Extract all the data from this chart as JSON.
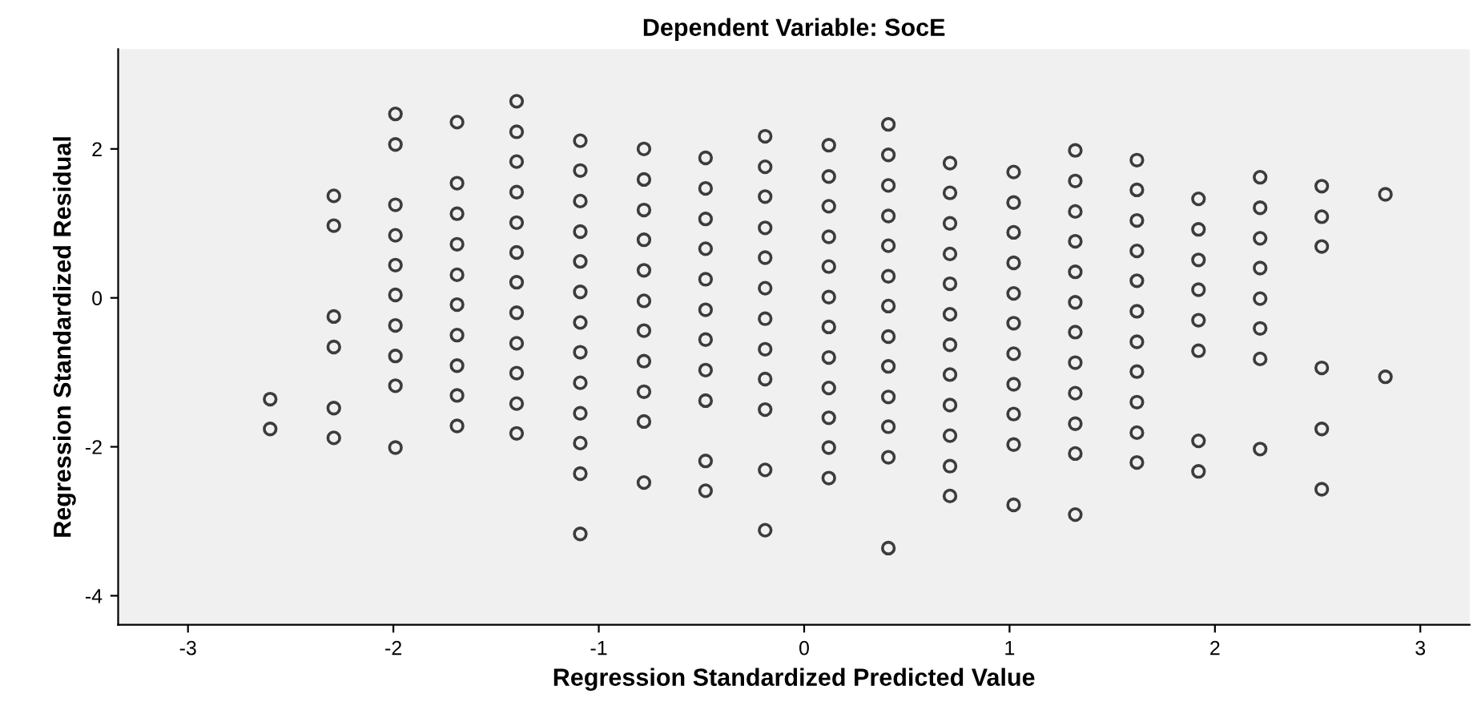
{
  "chart_data": {
    "type": "scatter",
    "title": "Dependent Variable: SocE",
    "xlabel": "Regression Standardized Predicted Value",
    "ylabel": "Regression Standardized Residual",
    "xlim": [
      -3.34,
      3.24
    ],
    "ylim": [
      -4.39,
      3.34
    ],
    "xticks": [
      -3,
      -2,
      -1,
      0,
      1,
      2,
      3
    ],
    "yticks": [
      -4,
      -2,
      0,
      2
    ],
    "grid": false,
    "marker": "circle",
    "series": [
      {
        "color": "#3c3c3c",
        "x": [
          -2.6,
          -2.6,
          -2.29,
          -2.29,
          -2.29,
          -2.29,
          -2.29,
          -2.29,
          -1.99,
          -1.99,
          -1.99,
          -1.99,
          -1.99,
          -1.99,
          -1.99,
          -1.99,
          -1.99,
          -1.99,
          -1.69,
          -1.69,
          -1.69,
          -1.69,
          -1.69,
          -1.69,
          -1.69,
          -1.69,
          -1.69,
          -1.69,
          -1.4,
          -1.4,
          -1.4,
          -1.4,
          -1.4,
          -1.4,
          -1.4,
          -1.4,
          -1.4,
          -1.4,
          -1.4,
          -1.4,
          -1.09,
          -1.09,
          -1.09,
          -1.09,
          -1.09,
          -1.09,
          -1.09,
          -1.09,
          -1.09,
          -1.09,
          -1.09,
          -1.09,
          -1.09,
          -0.78,
          -0.78,
          -0.78,
          -0.78,
          -0.78,
          -0.78,
          -0.78,
          -0.78,
          -0.78,
          -0.78,
          -0.78,
          -0.48,
          -0.48,
          -0.48,
          -0.48,
          -0.48,
          -0.48,
          -0.48,
          -0.48,
          -0.48,
          -0.48,
          -0.48,
          -0.19,
          -0.19,
          -0.19,
          -0.19,
          -0.19,
          -0.19,
          -0.19,
          -0.19,
          -0.19,
          -0.19,
          -0.19,
          -0.19,
          0.12,
          0.12,
          0.12,
          0.12,
          0.12,
          0.12,
          0.12,
          0.12,
          0.12,
          0.12,
          0.12,
          0.12,
          0.41,
          0.41,
          0.41,
          0.41,
          0.41,
          0.41,
          0.41,
          0.41,
          0.41,
          0.41,
          0.41,
          0.41,
          0.41,
          0.71,
          0.71,
          0.71,
          0.71,
          0.71,
          0.71,
          0.71,
          0.71,
          0.71,
          0.71,
          0.71,
          0.71,
          1.02,
          1.02,
          1.02,
          1.02,
          1.02,
          1.02,
          1.02,
          1.02,
          1.02,
          1.02,
          1.02,
          1.32,
          1.32,
          1.32,
          1.32,
          1.32,
          1.32,
          1.32,
          1.32,
          1.32,
          1.32,
          1.32,
          1.32,
          1.62,
          1.62,
          1.62,
          1.62,
          1.62,
          1.62,
          1.62,
          1.62,
          1.62,
          1.62,
          1.62,
          1.92,
          1.92,
          1.92,
          1.92,
          1.92,
          1.92,
          1.92,
          1.92,
          2.22,
          2.22,
          2.22,
          2.22,
          2.22,
          2.22,
          2.22,
          2.22,
          2.52,
          2.52,
          2.52,
          2.52,
          2.52,
          2.52,
          2.83,
          2.83
        ],
        "values": [
          -1.36,
          -1.76,
          1.37,
          0.97,
          -0.25,
          -0.66,
          -1.48,
          -1.88,
          2.47,
          2.06,
          1.25,
          0.84,
          0.44,
          0.04,
          -0.37,
          -0.78,
          -1.18,
          -2.01,
          2.36,
          1.54,
          1.13,
          0.72,
          0.31,
          -0.09,
          -0.5,
          -0.91,
          -1.31,
          -1.72,
          2.64,
          2.23,
          1.83,
          1.42,
          1.01,
          0.61,
          0.21,
          -0.2,
          -0.61,
          -1.01,
          -1.42,
          -1.82,
          2.11,
          1.71,
          1.3,
          0.89,
          0.49,
          0.08,
          -0.33,
          -0.73,
          -1.14,
          -1.55,
          -1.95,
          -2.36,
          -3.17,
          2.0,
          1.59,
          1.18,
          0.78,
          0.37,
          -0.04,
          -0.44,
          -0.85,
          -1.26,
          -1.66,
          -2.48,
          1.88,
          1.47,
          1.06,
          0.66,
          0.25,
          -0.16,
          -0.56,
          -0.97,
          -1.38,
          -2.19,
          -2.59,
          2.17,
          1.76,
          1.36,
          0.94,
          0.54,
          0.13,
          -0.28,
          -0.69,
          -1.09,
          -1.5,
          -2.31,
          -3.12,
          2.05,
          1.63,
          1.23,
          0.82,
          0.42,
          0.01,
          -0.39,
          -0.8,
          -1.21,
          -1.61,
          -2.01,
          -2.42,
          2.33,
          1.92,
          1.51,
          1.1,
          0.7,
          0.29,
          -0.11,
          -0.52,
          -0.92,
          -1.33,
          -1.73,
          -2.14,
          -3.36,
          1.81,
          1.41,
          1.0,
          0.59,
          0.19,
          -0.22,
          -0.63,
          -1.03,
          -1.44,
          -1.85,
          -2.26,
          -2.66,
          1.69,
          1.28,
          0.88,
          0.47,
          0.06,
          -0.34,
          -0.75,
          -1.16,
          -1.56,
          -1.97,
          -2.78,
          1.98,
          1.57,
          1.16,
          0.76,
          0.35,
          -0.06,
          -0.46,
          -0.87,
          -1.28,
          -1.69,
          -2.09,
          -2.91,
          1.85,
          1.45,
          1.04,
          0.63,
          0.23,
          -0.18,
          -0.59,
          -0.99,
          -1.4,
          -1.81,
          -2.21,
          1.33,
          0.92,
          0.51,
          0.11,
          -0.3,
          -0.71,
          -1.92,
          -2.33,
          1.62,
          1.21,
          0.8,
          0.4,
          -0.01,
          -0.41,
          -0.82,
          -2.03,
          1.5,
          1.09,
          0.69,
          -0.94,
          -1.76,
          -2.57,
          1.39,
          -1.06
        ]
      }
    ]
  }
}
